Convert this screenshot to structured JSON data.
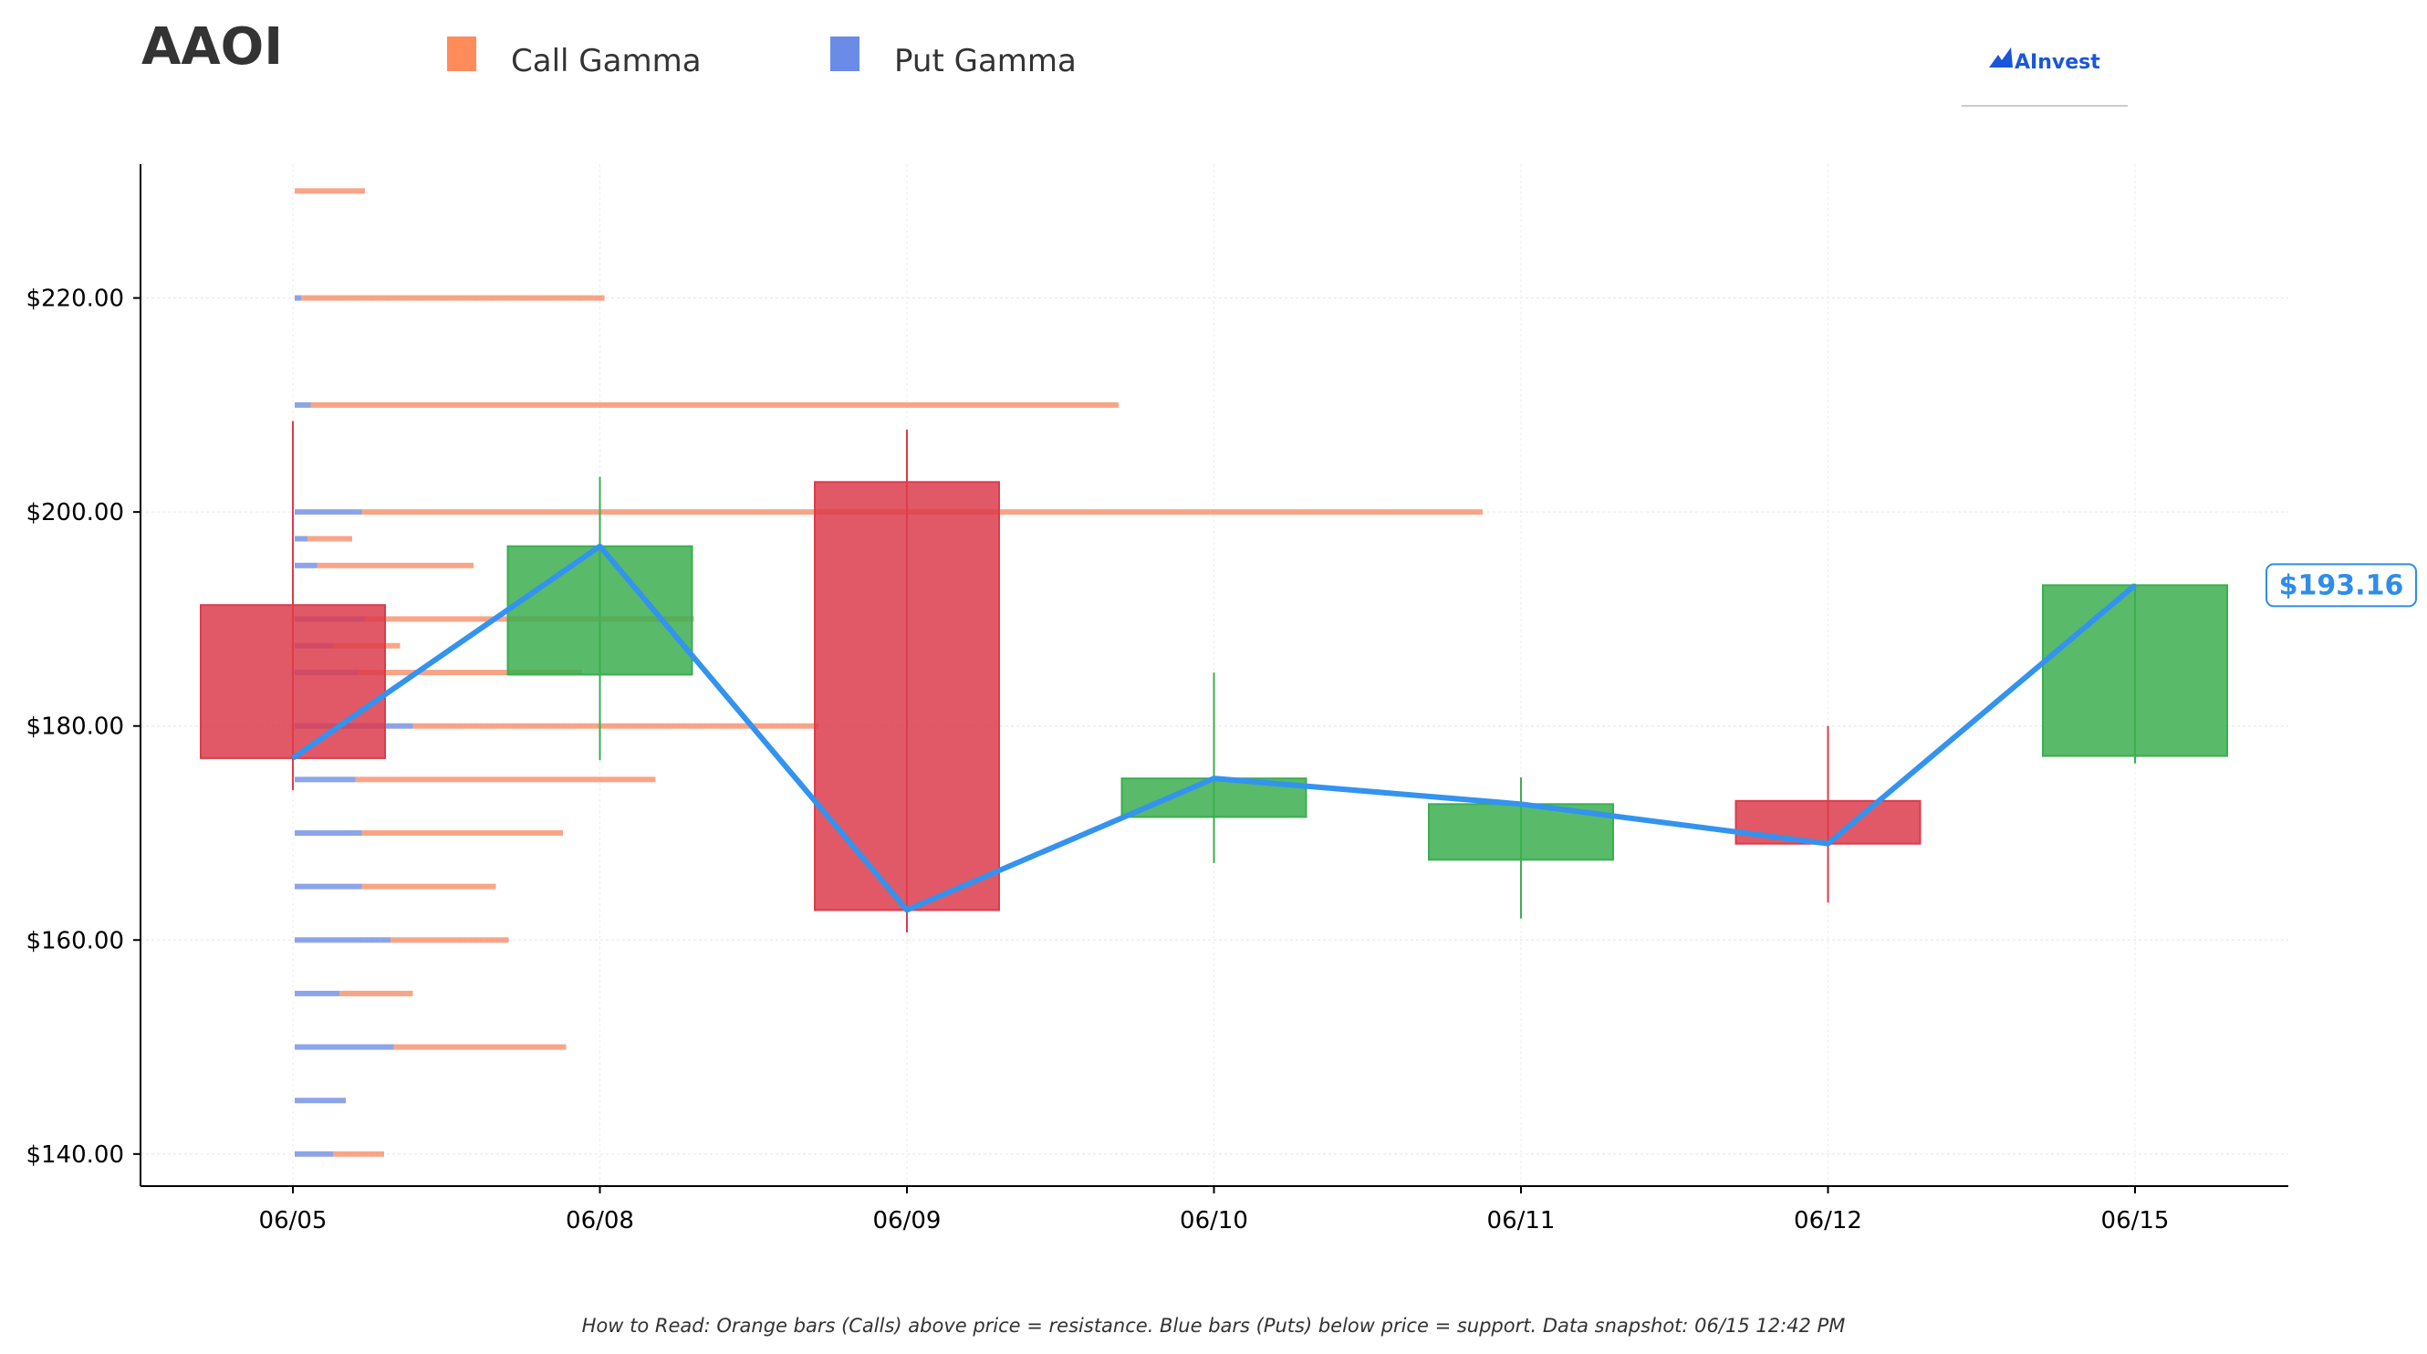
{
  "header": {
    "ticker": "AAOI",
    "legend": [
      {
        "label": "Call Gamma",
        "color": "#ff8c5a"
      },
      {
        "label": "Put Gamma",
        "color": "#6b8be8"
      }
    ],
    "brand": "AInvest",
    "brand_color": "#1a56db"
  },
  "footer": {
    "text": "How to Read: Orange bars (Calls) above price = resistance. Blue bars (Puts) below price = support. Data snapshot: 06/15 12:42 PM"
  },
  "colors": {
    "up": "#3cae50",
    "down": "#dc3c4b",
    "line": "#3393ee",
    "call": "#f5875f",
    "put": "#6f8de3",
    "price_label": "#2f8de8"
  },
  "chart_data": {
    "type": "candlestick",
    "ylim": [
      137,
      232.5
    ],
    "yticks": [
      140,
      160,
      180,
      200,
      220
    ],
    "ytick_labels": [
      "$140.00",
      "$160.00",
      "$180.00",
      "$200.00",
      "$220.00"
    ],
    "categories": [
      "06/05",
      "06/08",
      "06/09",
      "06/10",
      "06/11",
      "06/12",
      "06/15"
    ],
    "candles": [
      {
        "date": "06/05",
        "open": 191.3,
        "high": 208.5,
        "low": 174.0,
        "close": 177.0
      },
      {
        "date": "06/08",
        "open": 184.8,
        "high": 203.3,
        "low": 176.8,
        "close": 196.8
      },
      {
        "date": "06/09",
        "open": 202.8,
        "high": 207.7,
        "low": 160.7,
        "close": 162.8
      },
      {
        "date": "06/10",
        "open": 171.5,
        "high": 185.0,
        "low": 167.2,
        "close": 175.1
      },
      {
        "date": "06/11",
        "open": 167.5,
        "high": 175.2,
        "low": 162.0,
        "close": 172.7
      },
      {
        "date": "06/12",
        "open": 173.0,
        "high": 180.0,
        "low": 163.5,
        "close": 169.0
      },
      {
        "date": "06/15",
        "open": 177.2,
        "high": 193.3,
        "low": 176.5,
        "close": 193.16
      }
    ],
    "price_line": [
      177.0,
      196.8,
      162.8,
      175.1,
      172.7,
      169.0,
      193.16
    ],
    "current_price_label": "$193.16",
    "gamma_exposure_series": [
      {
        "name": "Call Gamma",
        "strikes": [
          230,
          220,
          210,
          200,
          197.5,
          195,
          190,
          187.5,
          185,
          180,
          175,
          170,
          165,
          160,
          155,
          150,
          145,
          140
        ],
        "values": [
          0.22,
          0.95,
          2.53,
          3.51,
          0.14,
          0.49,
          1.03,
          0.21,
          0.7,
          1.27,
          0.94,
          0.63,
          0.42,
          0.37,
          0.23,
          0.54,
          0.0,
          0.16
        ]
      },
      {
        "name": "Put Gamma",
        "strikes": [
          230,
          220,
          210,
          200,
          197.5,
          195,
          190,
          187.5,
          185,
          180,
          175,
          170,
          165,
          160,
          155,
          150,
          145,
          140
        ],
        "values": [
          0.0,
          0.02,
          0.05,
          0.21,
          0.04,
          0.07,
          0.22,
          0.12,
          0.2,
          0.37,
          0.19,
          0.21,
          0.21,
          0.3,
          0.14,
          0.31,
          0.16,
          0.12
        ]
      }
    ],
    "gamma_scale_note": "",
    "grid": true
  }
}
